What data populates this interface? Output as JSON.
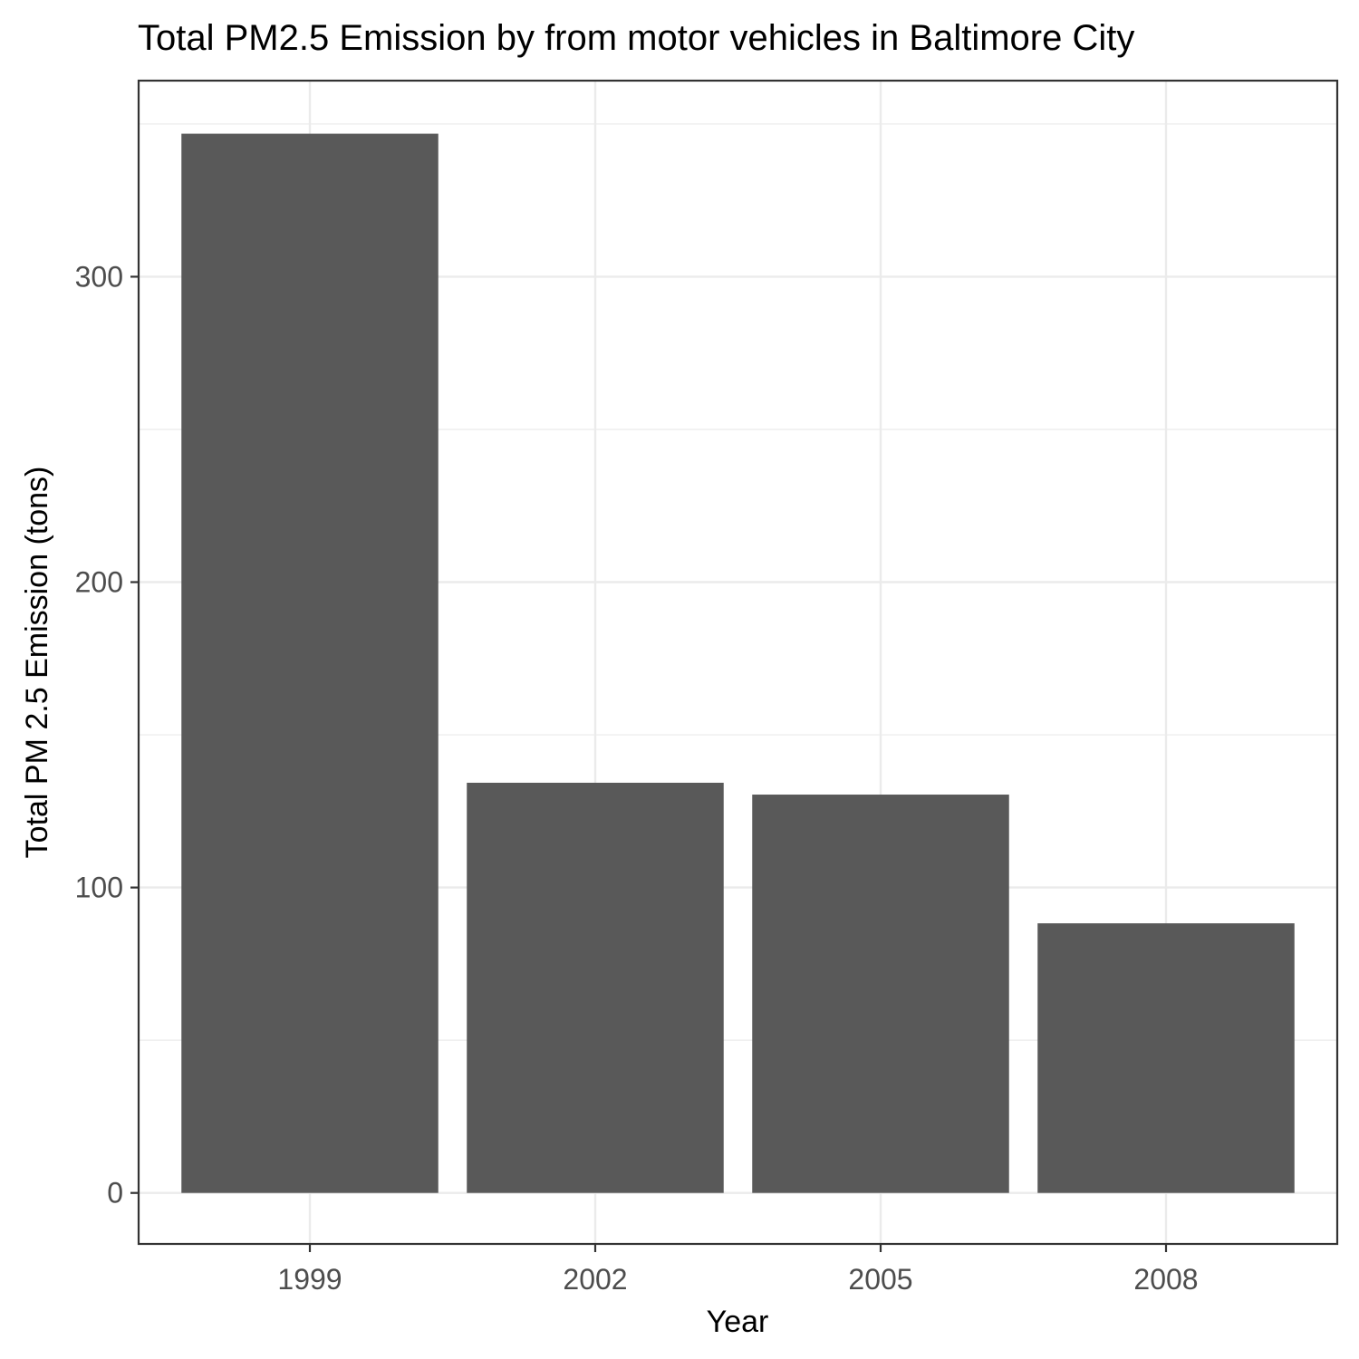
{
  "chart_data": {
    "type": "bar",
    "title": "Total PM2.5 Emission by from motor vehicles in Baltimore City",
    "xlabel": "Year",
    "ylabel": "Total PM 2.5 Emission (tons)",
    "categories": [
      "1999",
      "2002",
      "2005",
      "2008"
    ],
    "values": [
      346.82,
      134.31,
      130.43,
      88.28
    ],
    "ylim": [
      -16.7,
      364.2
    ],
    "yticks": [
      0,
      100,
      200,
      300
    ],
    "ytick_labels": [
      "0",
      "100",
      "200",
      "300"
    ],
    "grid": true,
    "colors": {
      "bar": "#595959",
      "grid": "#ebebeb",
      "panel_border": "#333333",
      "tick_text": "#4d4d4d"
    }
  }
}
